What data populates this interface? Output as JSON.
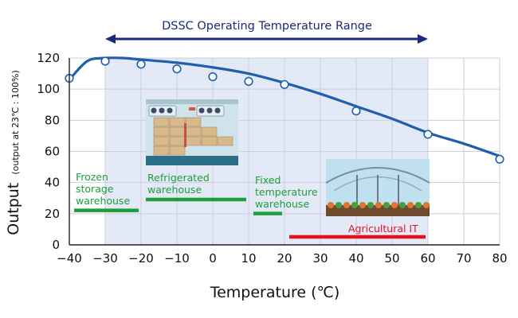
{
  "chart_data": {
    "type": "scatter",
    "title": "DSSC Operating Temperature Range",
    "xlabel": "Temperature (℃)",
    "ylabel": "Output",
    "ylabel_sub": "(output at 23℃ : 100%)",
    "xlim": [
      -40,
      80
    ],
    "ylim": [
      0,
      120
    ],
    "x_ticks": [
      "−40",
      "−30",
      "−20",
      "−10",
      "0",
      "10",
      "20",
      "30",
      "40",
      "50",
      "60",
      "70",
      "80"
    ],
    "y_ticks": [
      "0",
      "20",
      "40",
      "60",
      "80",
      "100",
      "120"
    ],
    "grid": true,
    "operating_range": [
      -30,
      60
    ],
    "series": [
      {
        "values_x": [
          -40,
          -30,
          -20,
          -10,
          0,
          10,
          20,
          40,
          60,
          80
        ],
        "values_y": [
          107,
          118,
          116,
          113,
          108,
          105,
          103,
          86,
          71,
          55
        ]
      }
    ],
    "curve": {
      "x": [
        -40,
        -35,
        -30,
        -25,
        -20,
        -10,
        0,
        10,
        20,
        30,
        40,
        50,
        60,
        70,
        80
      ],
      "y": [
        106,
        118,
        120,
        120,
        119,
        117,
        114,
        110,
        104,
        97,
        89,
        81,
        72,
        65,
        57
      ]
    },
    "applications": [
      {
        "label_lines": [
          "Frozen",
          "storage",
          "warehouse"
        ],
        "range": [
          -40,
          -20
        ],
        "y": 22,
        "color": "#1e9e3a"
      },
      {
        "label_lines": [
          "Refrigerated",
          "warehouse"
        ],
        "range": [
          -20,
          10
        ],
        "y": 29,
        "color": "#1e9e3a"
      },
      {
        "label_lines": [
          "Fixed",
          "temperature",
          "warehouse"
        ],
        "range": [
          10,
          20
        ],
        "y": 20,
        "color": "#1e9e3a"
      },
      {
        "label_lines": [
          "Agricultural IT"
        ],
        "range": [
          20,
          60
        ],
        "y": 5,
        "color": "#e3141e"
      }
    ],
    "colors": {
      "line": "#1f5fae",
      "range_band": "#e3e9f6",
      "range_arrow": "#1b2a7a",
      "title_text": "#1b2a7a"
    }
  }
}
